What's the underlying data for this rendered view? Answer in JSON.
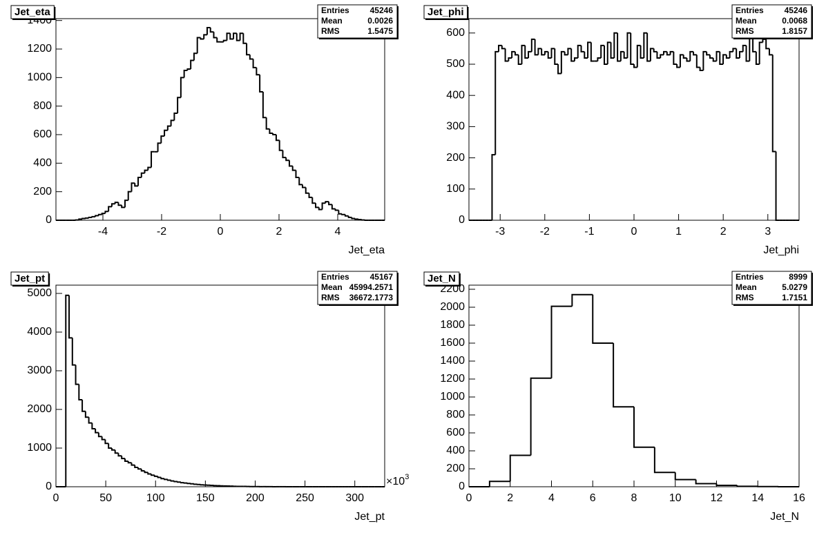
{
  "chart_data": [
    {
      "type": "histogram",
      "title": "Jet_eta",
      "xlabel": "Jet_eta",
      "color": "#000000",
      "xlim": [
        -5.6,
        5.6
      ],
      "ylim": [
        0,
        1413
      ],
      "xticks": [
        -4,
        -2,
        0,
        2,
        4
      ],
      "yticks": [
        0,
        200,
        400,
        600,
        800,
        1000,
        1200,
        1400
      ],
      "bins": [
        -5.6,
        -5.488,
        -5.376,
        -5.264,
        -5.152,
        -5.04,
        -4.928,
        -4.816,
        -4.704,
        -4.592,
        -4.48,
        -4.368,
        -4.256,
        -4.144,
        -4.032,
        -3.92,
        -3.808,
        -3.696,
        -3.584,
        -3.472,
        -3.36,
        -3.248,
        -3.136,
        -3.024,
        -2.912,
        -2.8,
        -2.688,
        -2.576,
        -2.464,
        -2.352,
        -2.24,
        -2.128,
        -2.016,
        -1.904,
        -1.792,
        -1.68,
        -1.568,
        -1.456,
        -1.344,
        -1.232,
        -1.12,
        -1.008,
        -0.896,
        -0.784,
        -0.672,
        -0.56,
        -0.448,
        -0.336,
        -0.224,
        -0.112,
        0,
        0.112,
        0.224,
        0.336,
        0.448,
        0.56,
        0.672,
        0.784,
        0.896,
        1.008,
        1.12,
        1.232,
        1.344,
        1.456,
        1.568,
        1.68,
        1.792,
        1.904,
        2.016,
        2.128,
        2.24,
        2.352,
        2.464,
        2.576,
        2.688,
        2.8,
        2.912,
        3.024,
        3.136,
        3.248,
        3.36,
        3.472,
        3.584,
        3.696,
        3.808,
        3.92,
        4.032,
        4.144,
        4.256,
        4.368,
        4.48,
        4.592,
        4.704,
        4.816,
        4.928,
        5.04,
        5.152,
        5.264,
        5.376,
        5.488,
        5.6
      ],
      "values": [
        0,
        0,
        0,
        0,
        0,
        0,
        2,
        8,
        12,
        15,
        20,
        25,
        32,
        40,
        48,
        62,
        95,
        115,
        125,
        105,
        90,
        140,
        200,
        260,
        240,
        300,
        330,
        350,
        370,
        480,
        480,
        540,
        590,
        630,
        660,
        700,
        750,
        860,
        1000,
        1050,
        1060,
        1120,
        1170,
        1280,
        1270,
        1300,
        1350,
        1320,
        1280,
        1250,
        1250,
        1260,
        1310,
        1270,
        1310,
        1260,
        1310,
        1240,
        1160,
        1130,
        1070,
        1020,
        900,
        720,
        640,
        610,
        600,
        560,
        490,
        440,
        420,
        380,
        350,
        300,
        250,
        230,
        190,
        160,
        120,
        90,
        75,
        120,
        130,
        110,
        80,
        70,
        45,
        40,
        30,
        20,
        12,
        8,
        5,
        2,
        0,
        0,
        0,
        0,
        0,
        0
      ],
      "stats": {
        "labels": [
          "Entries",
          "Mean",
          "RMS"
        ],
        "values": [
          45246,
          0.0026,
          1.5475
        ]
      }
    },
    {
      "type": "histogram",
      "title": "Jet_phi",
      "xlabel": "Jet_phi",
      "color": "#000000",
      "xlim": [
        -3.7,
        3.7
      ],
      "ylim": [
        0,
        646
      ],
      "xticks": [
        -3,
        -2,
        -1,
        0,
        1,
        2,
        3
      ],
      "yticks": [
        0,
        100,
        200,
        300,
        400,
        500,
        600
      ],
      "bins": [
        -3.7,
        -3.626,
        -3.552,
        -3.478,
        -3.404,
        -3.33,
        -3.256,
        -3.182,
        -3.108,
        -3.034,
        -2.96,
        -2.886,
        -2.812,
        -2.738,
        -2.664,
        -2.59,
        -2.516,
        -2.442,
        -2.368,
        -2.294,
        -2.22,
        -2.146,
        -2.072,
        -1.998,
        -1.924,
        -1.85,
        -1.776,
        -1.702,
        -1.628,
        -1.554,
        -1.48,
        -1.406,
        -1.332,
        -1.258,
        -1.184,
        -1.11,
        -1.036,
        -0.962,
        -0.888,
        -0.814,
        -0.74,
        -0.666,
        -0.592,
        -0.518,
        -0.444,
        -0.37,
        -0.296,
        -0.222,
        -0.148,
        -0.074,
        0,
        0.074,
        0.148,
        0.222,
        0.296,
        0.37,
        0.444,
        0.518,
        0.592,
        0.666,
        0.74,
        0.814,
        0.888,
        0.962,
        1.036,
        1.11,
        1.184,
        1.258,
        1.332,
        1.406,
        1.48,
        1.554,
        1.628,
        1.702,
        1.776,
        1.85,
        1.924,
        1.998,
        2.072,
        2.146,
        2.22,
        2.294,
        2.368,
        2.442,
        2.516,
        2.59,
        2.664,
        2.738,
        2.812,
        2.886,
        2.96,
        3.034,
        3.108,
        3.182,
        3.256,
        3.33,
        3.404,
        3.478,
        3.552,
        3.626,
        3.7
      ],
      "values": [
        0,
        0,
        0,
        0,
        0,
        0,
        0,
        210,
        540,
        560,
        550,
        510,
        520,
        540,
        530,
        500,
        560,
        520,
        540,
        580,
        530,
        550,
        530,
        540,
        520,
        550,
        500,
        470,
        540,
        530,
        550,
        510,
        520,
        560,
        540,
        520,
        570,
        510,
        510,
        520,
        560,
        500,
        570,
        520,
        600,
        510,
        540,
        520,
        600,
        500,
        490,
        560,
        520,
        600,
        510,
        550,
        540,
        520,
        530,
        540,
        530,
        540,
        500,
        490,
        530,
        520,
        510,
        540,
        530,
        490,
        480,
        540,
        530,
        520,
        510,
        540,
        500,
        530,
        520,
        540,
        550,
        520,
        540,
        560,
        510,
        590,
        540,
        500,
        570,
        580,
        550,
        530,
        220,
        0,
        0,
        0,
        0,
        0,
        0,
        0
      ],
      "stats": {
        "labels": [
          "Entries",
          "Mean",
          "RMS"
        ],
        "values": [
          45246,
          0.0068,
          1.8157
        ]
      }
    },
    {
      "type": "histogram",
      "title": "Jet_pt",
      "xlabel": "Jet_pt",
      "color": "#000000",
      "x_scale_base": "×10",
      "x_scale_exponent": "3",
      "xlim": [
        0,
        330
      ],
      "ylim": [
        0,
        5214
      ],
      "xticks": [
        0,
        50,
        100,
        150,
        200,
        250,
        300
      ],
      "yticks": [
        0,
        1000,
        2000,
        3000,
        4000,
        5000
      ],
      "bins": [
        0,
        3.3,
        6.6,
        9.9,
        13.2,
        16.5,
        19.8,
        23.1,
        26.4,
        29.7,
        33,
        36.3,
        39.6,
        42.9,
        46.2,
        49.5,
        52.8,
        56.1,
        59.4,
        62.7,
        66,
        69.3,
        72.6,
        75.9,
        79.2,
        82.5,
        85.8,
        89.1,
        92.4,
        95.7,
        99,
        102.3,
        105.6,
        108.9,
        112.2,
        115.5,
        118.8,
        122.1,
        125.4,
        128.7,
        132,
        135.3,
        138.6,
        141.9,
        145.2,
        148.5,
        151.8,
        155.1,
        158.4,
        161.7,
        165,
        168.3,
        171.6,
        174.9,
        178.2,
        181.5,
        184.8,
        188.1,
        191.4,
        194.7,
        198,
        201.3,
        204.6,
        207.9,
        211.2,
        214.5,
        217.8,
        221.1,
        224.4,
        227.7,
        231,
        234.3,
        237.6,
        240.9,
        244.2,
        247.5,
        250.8,
        254.1,
        257.4,
        260.7,
        264,
        267.3,
        270.6,
        273.9,
        277.2,
        280.5,
        283.8,
        287.1,
        290.4,
        293.7,
        297,
        300.3,
        303.6,
        306.9,
        310.2,
        313.5,
        316.8,
        320.1,
        323.4,
        326.7,
        330
      ],
      "values": [
        0,
        0,
        0,
        4950,
        3850,
        3150,
        2650,
        2250,
        1950,
        1800,
        1650,
        1500,
        1400,
        1300,
        1220,
        1120,
        1000,
        950,
        870,
        800,
        730,
        660,
        620,
        560,
        500,
        460,
        410,
        370,
        330,
        300,
        270,
        240,
        210,
        190,
        170,
        150,
        135,
        120,
        105,
        95,
        85,
        75,
        65,
        58,
        50,
        45,
        40,
        35,
        30,
        26,
        22,
        20,
        17,
        15,
        12,
        10,
        9,
        8,
        6,
        5,
        4,
        4,
        3,
        3,
        2,
        2,
        1,
        1,
        1,
        1,
        0,
        0,
        0,
        0,
        0,
        0,
        0,
        0,
        0,
        0,
        0,
        0,
        0,
        0,
        0,
        0,
        0,
        0,
        0,
        0,
        0,
        0,
        0,
        0,
        0,
        0,
        0,
        0,
        0,
        0
      ],
      "stats": {
        "labels": [
          "Entries",
          "Mean",
          "RMS"
        ],
        "values": [
          45167,
          45994.2571,
          36672.1773
        ]
      }
    },
    {
      "type": "histogram",
      "title": "Jet_N",
      "xlabel": "Jet_N",
      "color": "#000000",
      "xlim": [
        0,
        16
      ],
      "ylim": [
        0,
        2246
      ],
      "xticks": [
        0,
        2,
        4,
        6,
        8,
        10,
        12,
        14,
        16
      ],
      "yticks": [
        0,
        200,
        400,
        600,
        800,
        1000,
        1200,
        1400,
        1600,
        1800,
        2000,
        2200
      ],
      "bins": [
        0,
        1,
        2,
        3,
        4,
        5,
        6,
        7,
        8,
        9,
        10,
        11,
        12,
        13,
        14,
        15,
        16
      ],
      "values": [
        0,
        60,
        350,
        1210,
        2010,
        2140,
        1600,
        890,
        440,
        160,
        80,
        35,
        15,
        5,
        2,
        0
      ],
      "stats": {
        "labels": [
          "Entries",
          "Mean",
          "RMS"
        ],
        "values": [
          8999,
          5.0279,
          1.7151
        ]
      }
    }
  ]
}
